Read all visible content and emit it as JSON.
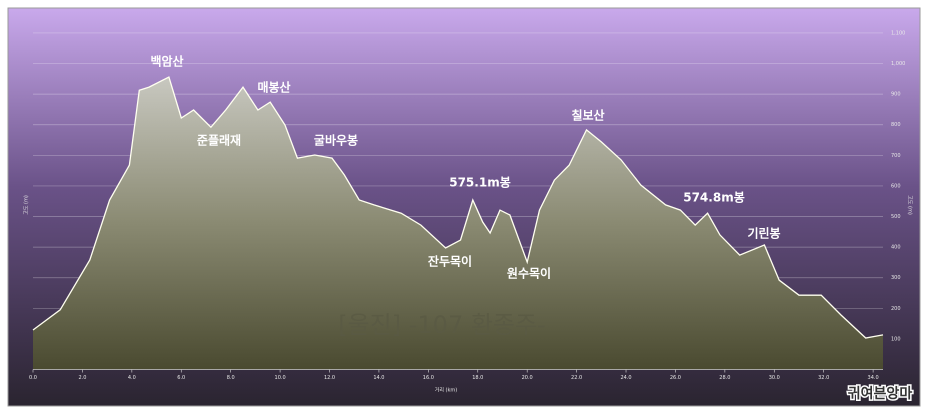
{
  "chart_data": {
    "type": "area",
    "x_label": "거리 (km)",
    "y_label": "고도 (m)",
    "y2_label": "고도 (m)",
    "watermark": "[울진] -107 환종주-",
    "badge": "귀여븐앙마",
    "annotations": [
      "백암산",
      "준플래재",
      "매봉산",
      "굴바우봉",
      "575.1m봉",
      "잔두목이",
      "원수목이",
      "칠보산",
      "574.8m봉",
      "기린봉"
    ],
    "x": [
      0,
      1.1,
      2.3,
      3.1,
      3.9,
      4.3,
      4.7,
      5.5,
      6.0,
      6.5,
      7.2,
      7.8,
      8.5,
      9.1,
      9.6,
      10.2,
      10.7,
      11.4,
      12.1,
      12.6,
      13.2,
      13.8,
      14.9,
      15.7,
      16.7,
      17.3,
      17.8,
      18.2,
      18.5,
      18.9,
      19.3,
      20.0,
      20.5,
      21.1,
      21.7,
      22.4,
      23.0,
      23.8,
      24.6,
      25.6,
      26.2,
      26.8,
      27.3,
      27.8,
      28.6,
      29.6,
      30.2,
      31.0,
      31.9,
      32.7,
      33.7,
      34.4
    ],
    "values": [
      129,
      195,
      358,
      554,
      668,
      913,
      923,
      956,
      822,
      848,
      792,
      848,
      923,
      848,
      874,
      799,
      691,
      701,
      691,
      636,
      554,
      538,
      511,
      472,
      397,
      423,
      554,
      482,
      446,
      521,
      505,
      351,
      521,
      619,
      668,
      783,
      744,
      685,
      603,
      538,
      521,
      472,
      511,
      440,
      374,
      407,
      292,
      243,
      243,
      178,
      103,
      113
    ],
    "color": "#fffff0",
    "xlim": [
      0,
      34.4
    ],
    "xticks": [
      {
        "value": 0,
        "label": "0.0"
      },
      {
        "value": 2,
        "label": "2.0"
      },
      {
        "value": 4,
        "label": "4.0"
      },
      {
        "value": 6,
        "label": "6.0"
      },
      {
        "value": 8,
        "label": "8.0"
      },
      {
        "value": 10,
        "label": "10.0"
      },
      {
        "value": 12,
        "label": "12.0"
      },
      {
        "value": 14,
        "label": "14.0"
      },
      {
        "value": 16,
        "label": "16.0"
      },
      {
        "value": 18,
        "label": "18.0"
      },
      {
        "value": 20,
        "label": "20.0"
      },
      {
        "value": 22,
        "label": "22.0"
      },
      {
        "value": 24,
        "label": "24.0"
      },
      {
        "value": 26,
        "label": "26.0"
      },
      {
        "value": 28,
        "label": "28.0"
      },
      {
        "value": 30,
        "label": "30.0"
      },
      {
        "value": 32,
        "label": "32.0"
      },
      {
        "value": 34,
        "label": "34.0"
      }
    ],
    "ylim": [
      0,
      1175
    ],
    "yticks": [
      100,
      200,
      300,
      400,
      500,
      600,
      700,
      800,
      900,
      {
        "value": 1000,
        "label": "1,000"
      },
      {
        "value": 1100,
        "label": "1,100"
      }
    ],
    "grid": true
  }
}
